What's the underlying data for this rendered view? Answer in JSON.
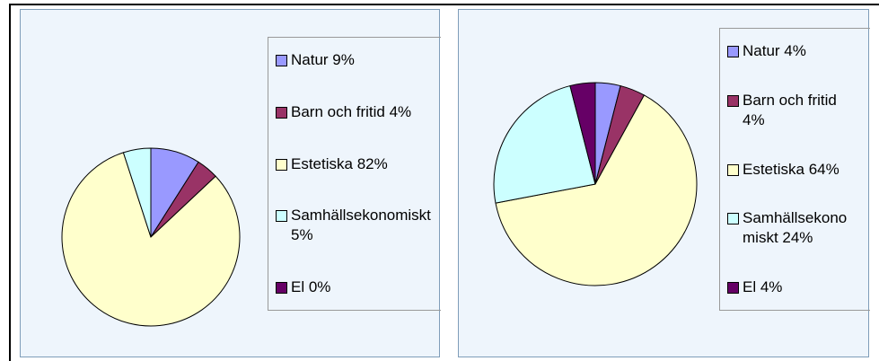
{
  "chart_data": [
    {
      "type": "pie",
      "categories": [
        "Natur 9%",
        "Barn och fritid 4%",
        "Estetiska 82%",
        "Samhällsekonomiskt 5%",
        "El 0%"
      ],
      "values": [
        9,
        4,
        82,
        5,
        0
      ],
      "colors": [
        "#9999ff",
        "#993366",
        "#ffffcc",
        "#ccffff",
        "#660066"
      ]
    },
    {
      "type": "pie",
      "categories": [
        "Natur 4%",
        "Barn och fritid 4%",
        "Estetiska 64%",
        "Samhällsekonomiskt 24%",
        "El 4%"
      ],
      "values": [
        4,
        4,
        64,
        24,
        4
      ],
      "colors": [
        "#9999ff",
        "#993366",
        "#ffffcc",
        "#ccffff",
        "#660066"
      ]
    }
  ]
}
